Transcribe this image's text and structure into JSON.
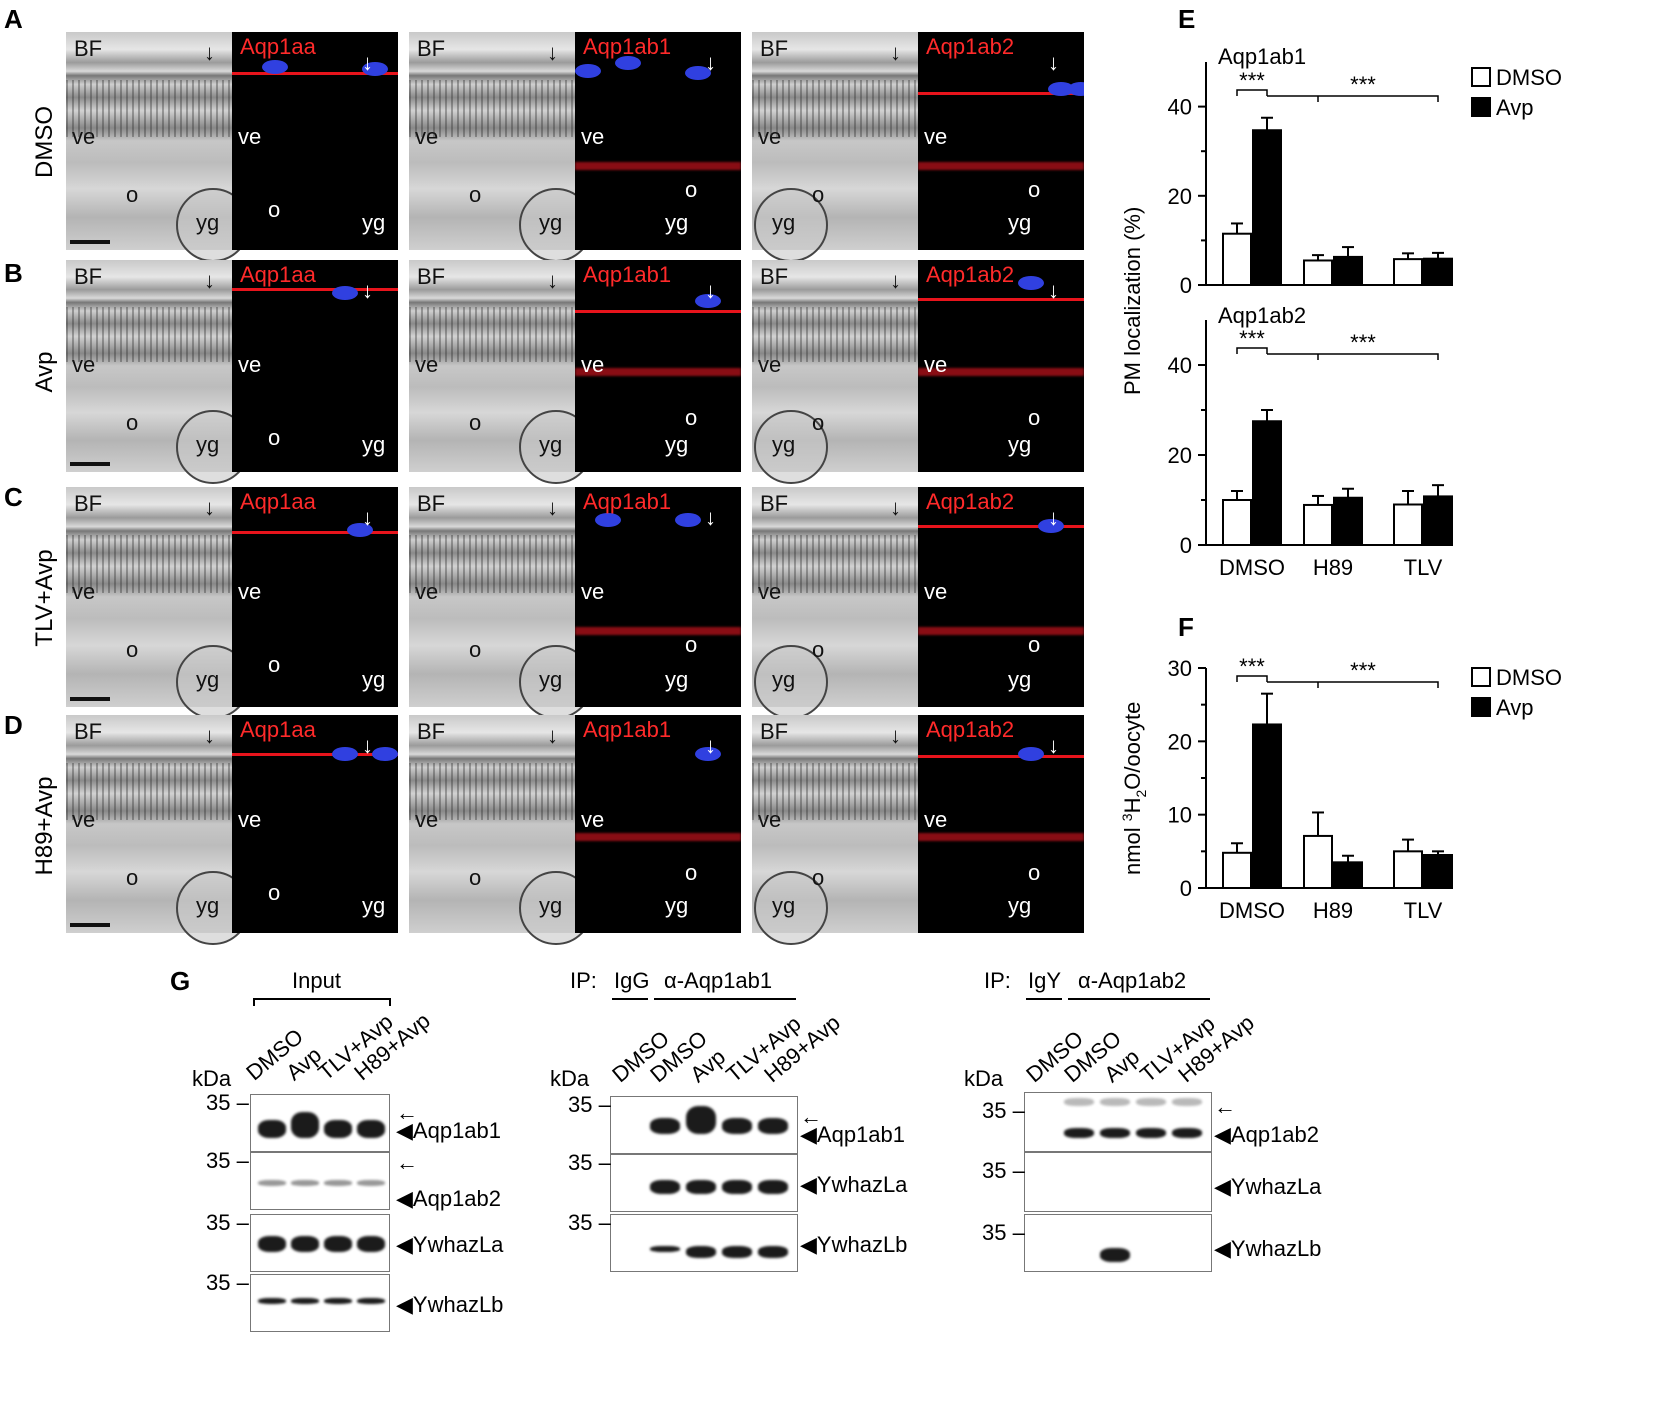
{
  "panels": {
    "A": "A",
    "B": "B",
    "C": "C",
    "D": "D",
    "E": "E",
    "F": "F",
    "G": "G"
  },
  "rows": [
    "DMSO",
    "Avp",
    "TLV+Avp",
    "H89+Avp"
  ],
  "micro": {
    "bf": "BF",
    "channels": [
      "Aqp1aa",
      "Aqp1ab1",
      "Aqp1ab2"
    ],
    "labels": {
      "ve": "ve",
      "o": "o",
      "yg": "yg"
    }
  },
  "chartE_top": {
    "title": "Aqp1ab1",
    "ylabel": "PM localization (%)",
    "sig1": "***",
    "sig2": "***"
  },
  "chartE_bottom": {
    "title": "Aqp1ab2",
    "sig1": "***",
    "sig2": "***"
  },
  "chartF": {
    "ylabel_prefix": "nmol ",
    "ylabel_sup": "3",
    "ylabel_mid": "H",
    "ylabel_sub": "2",
    "ylabel_suffix": "O/oocyte",
    "sig1": "***",
    "sig2": "***"
  },
  "legend": {
    "dmso": "DMSO",
    "avp": "Avp"
  },
  "chart_data": [
    {
      "type": "bar",
      "title": "Aqp1ab1",
      "ylabel": "PM localization (%)",
      "categories": [
        "DMSO",
        "H89",
        "TLV"
      ],
      "series": [
        {
          "name": "DMSO",
          "values": [
            11.5,
            5.5,
            5.8
          ],
          "err": [
            2.3,
            1.2,
            1.3
          ],
          "color": "#ffffff"
        },
        {
          "name": "Avp",
          "values": [
            34.7,
            6.3,
            5.9
          ],
          "err": [
            2.8,
            2.2,
            1.3
          ],
          "color": "#000000"
        }
      ],
      "ylim": [
        0,
        50
      ],
      "yticks": [
        0,
        20,
        40
      ]
    },
    {
      "type": "bar",
      "title": "Aqp1ab2",
      "categories": [
        "DMSO",
        "H89",
        "TLV"
      ],
      "series": [
        {
          "name": "DMSO",
          "values": [
            10.0,
            8.9,
            9.0
          ],
          "err": [
            2.0,
            2.0,
            3.0
          ],
          "color": "#ffffff"
        },
        {
          "name": "Avp",
          "values": [
            27.5,
            10.5,
            10.8
          ],
          "err": [
            2.5,
            2.0,
            2.5
          ],
          "color": "#000000"
        }
      ],
      "ylim": [
        0,
        50
      ],
      "yticks": [
        0,
        20,
        40
      ]
    },
    {
      "type": "bar",
      "ylabel": "nmol 3H2O/oocyte",
      "categories": [
        "DMSO",
        "H89",
        "TLV"
      ],
      "series": [
        {
          "name": "DMSO",
          "values": [
            4.8,
            7.1,
            5.0
          ],
          "err": [
            1.3,
            3.2,
            1.6
          ],
          "color": "#ffffff"
        },
        {
          "name": "Avp",
          "values": [
            22.3,
            3.5,
            4.5
          ],
          "err": [
            4.2,
            0.9,
            0.5
          ],
          "color": "#000000"
        }
      ],
      "ylim": [
        0,
        30
      ],
      "yticks": [
        0,
        10,
        20,
        30
      ]
    }
  ],
  "blotG": {
    "input_header": "Input",
    "ip_label": "IP:",
    "igg": "IgG",
    "igy": "IgY",
    "ab1": "α-Aqp1ab1",
    "ab2": "α-Aqp1ab2",
    "kda": "kDa",
    "marker": "35",
    "lanes_input": [
      "DMSO",
      "Avp",
      "TLV+Avp",
      "H89+Avp"
    ],
    "lanes_ip": [
      "DMSO",
      "DMSO",
      "Avp",
      "TLV+Avp",
      "H89+Avp"
    ],
    "proteins_input": [
      "Aqp1ab1",
      "Aqp1ab2",
      "YwhazLa",
      "YwhazLb"
    ],
    "proteins_ip1": [
      "Aqp1ab1",
      "YwhazLa",
      "YwhazLb"
    ],
    "proteins_ip2": [
      "Aqp1ab2",
      "YwhazLa",
      "YwhazLb"
    ]
  }
}
